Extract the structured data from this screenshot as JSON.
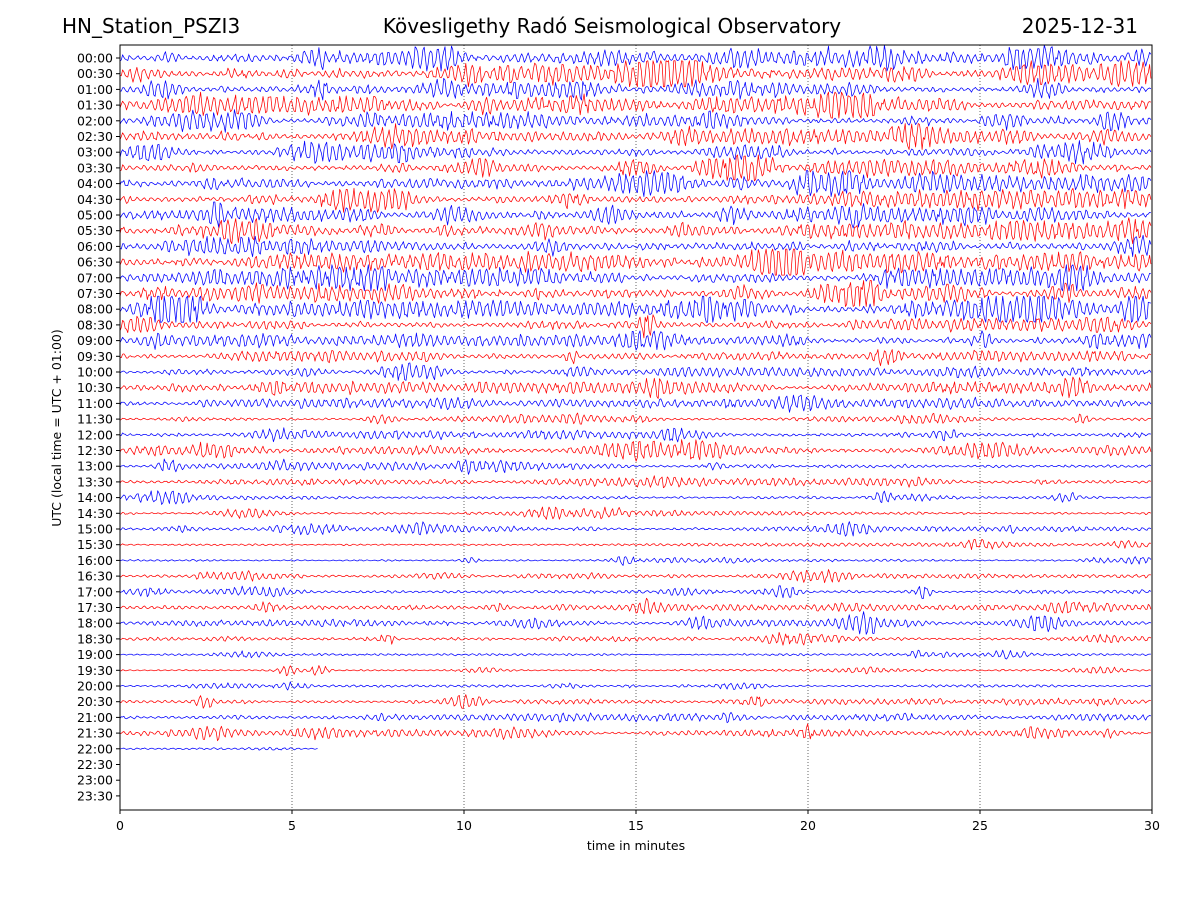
{
  "header": {
    "station": "HN_Station_PSZI3",
    "observatory": "Kövesligethy Radó Seismological Observatory",
    "date": "2025-12-31"
  },
  "chart_data": {
    "type": "line",
    "title": "Kövesligethy Radó Seismological Observatory",
    "xlabel": "time in minutes",
    "ylabel": "UTC (local time = UTC + 01:00)",
    "xlim": [
      0,
      30
    ],
    "x_ticks": [
      "0",
      "5",
      "10",
      "15",
      "20",
      "25",
      "30"
    ],
    "vertical_grid_at": [
      5,
      10,
      15,
      20,
      25
    ],
    "grid": "vertical dotted",
    "row_labels": [
      "00:00",
      "00:30",
      "01:00",
      "01:30",
      "02:00",
      "02:30",
      "03:00",
      "03:30",
      "04:00",
      "04:30",
      "05:00",
      "05:30",
      "06:00",
      "06:30",
      "07:00",
      "07:30",
      "08:00",
      "08:30",
      "09:00",
      "09:30",
      "10:00",
      "10:30",
      "11:00",
      "11:30",
      "12:00",
      "12:30",
      "13:00",
      "13:30",
      "14:00",
      "14:30",
      "15:00",
      "15:30",
      "16:00",
      "16:30",
      "17:00",
      "17:30",
      "18:00",
      "18:30",
      "19:00",
      "19:30",
      "20:00",
      "20:30",
      "21:00",
      "21:30",
      "22:00",
      "22:30",
      "23:00",
      "23:30"
    ],
    "trace_colors": [
      "#0000ff",
      "#ff0000"
    ],
    "recorded_rows": 45,
    "last_row_end_minutes": 5.75,
    "activity_level": [
      1.0,
      1.05,
      0.9,
      1.0,
      0.9,
      0.85,
      0.75,
      0.95,
      1.0,
      1.0,
      0.8,
      1.05,
      1.0,
      1.05,
      1.05,
      1.0,
      0.95,
      0.8,
      0.7,
      0.55,
      0.45,
      0.6,
      0.55,
      0.25,
      0.45,
      0.5,
      0.35,
      0.4,
      0.2,
      0.2,
      0.25,
      0.15,
      0.1,
      0.2,
      0.3,
      0.3,
      0.35,
      0.25,
      0.08,
      0.08,
      0.1,
      0.3,
      0.4,
      0.35,
      0.15
    ]
  }
}
